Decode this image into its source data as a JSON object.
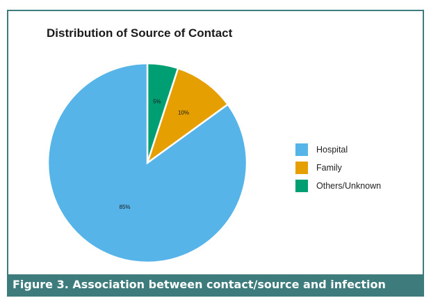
{
  "figure": {
    "caption": "Figure 3. Association between contact/source and infection"
  },
  "chart_data": {
    "type": "pie",
    "title": "Distribution of Source of Contact",
    "slices": [
      {
        "label": "Hospital",
        "value": 85,
        "display": "85%",
        "color": "#56b4e9"
      },
      {
        "label": "Family",
        "value": 10,
        "display": "10%",
        "color": "#e69f00"
      },
      {
        "label": "Others/Unknown",
        "value": 5,
        "display": "5%",
        "color": "#009e73"
      }
    ],
    "legend_position": "right"
  }
}
